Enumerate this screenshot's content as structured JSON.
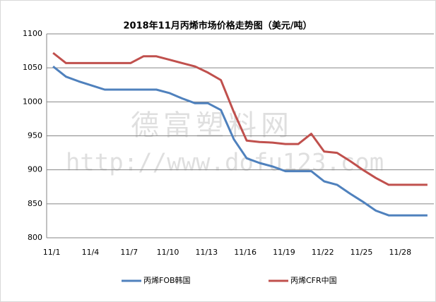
{
  "chart_data": {
    "type": "line",
    "title": "2018年11月丙烯市场价格走势图（美元/吨）",
    "watermark": [
      "德富塑料网",
      "http://www.dofu123.com"
    ],
    "categories": [
      "11/1",
      null,
      null,
      "11/4",
      null,
      null,
      "11/7",
      null,
      null,
      "11/10",
      null,
      null,
      "11/13",
      null,
      null,
      "11/16",
      null,
      null,
      "11/19",
      null,
      null,
      "11/22",
      null,
      null,
      "11/25",
      null,
      null,
      "11/28",
      null,
      null
    ],
    "series": [
      {
        "name": "丙烯FOB韩国",
        "color": "#4f81bd",
        "values": [
          1052,
          1037,
          1030,
          1024,
          1018,
          1018,
          1018,
          1018,
          1018,
          1013,
          1005,
          998,
          998,
          988,
          945,
          917,
          910,
          905,
          898,
          898,
          898,
          883,
          878,
          865,
          853,
          840,
          833,
          833,
          833,
          833
        ]
      },
      {
        "name": "丙烯CFR中国",
        "color": "#c0504d",
        "values": [
          1072,
          1057,
          1057,
          1057,
          1057,
          1057,
          1057,
          1067,
          1067,
          1062,
          1057,
          1052,
          1043,
          1032,
          985,
          943,
          941,
          940,
          938,
          938,
          953,
          927,
          925,
          913,
          900,
          888,
          878,
          878,
          878,
          878
        ]
      }
    ],
    "ylim": [
      800,
      1100
    ],
    "yticks": [
      800,
      850,
      900,
      950,
      1000,
      1050,
      1100
    ],
    "grid": true,
    "legend": "bottom"
  }
}
